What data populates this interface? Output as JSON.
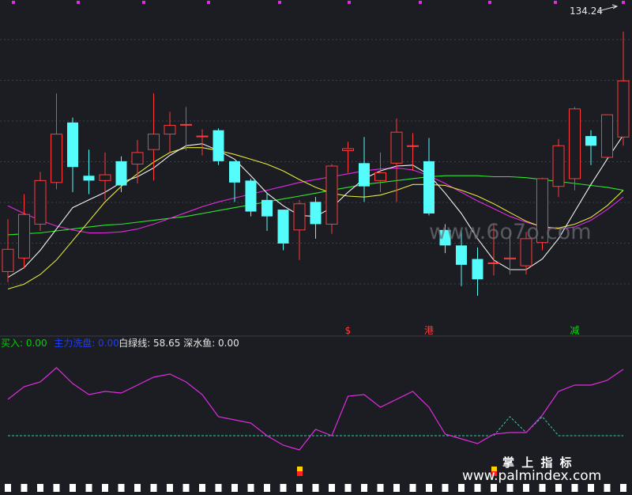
{
  "chart_data": {
    "type": "candlestick",
    "price_label": "134.24",
    "candles": [
      {
        "open": 117.6,
        "close": 119.9,
        "high": 123.0,
        "low": 116.5
      },
      {
        "open": 119.0,
        "close": 123.5,
        "high": 125.6,
        "low": 117.9
      },
      {
        "open": 122.5,
        "close": 127.0,
        "high": 127.9,
        "low": 121.8
      },
      {
        "open": 126.8,
        "close": 131.8,
        "high": 136.0,
        "low": 126.1
      },
      {
        "open": 133.0,
        "close": 128.4,
        "high": 133.5,
        "low": 125.8
      },
      {
        "open": 127.5,
        "close": 127.0,
        "high": 130.2,
        "low": 125.6
      },
      {
        "open": 127.0,
        "close": 127.6,
        "high": 129.9,
        "low": 125.0
      },
      {
        "open": 129.0,
        "close": 126.5,
        "high": 129.5,
        "low": 125.8
      },
      {
        "open": 128.7,
        "close": 129.9,
        "high": 131.2,
        "low": 126.7
      },
      {
        "open": 130.2,
        "close": 131.8,
        "high": 136.0,
        "low": 127.0
      },
      {
        "open": 131.8,
        "close": 132.7,
        "high": 134.1,
        "low": 129.9
      },
      {
        "open": 132.8,
        "close": 132.8,
        "high": 134.6,
        "low": 130.1
      },
      {
        "open": 131.6,
        "close": 131.6,
        "high": 132.3,
        "low": 129.6
      },
      {
        "open": 132.2,
        "close": 129.0,
        "high": 132.4,
        "low": 128.6
      },
      {
        "open": 129.0,
        "close": 126.8,
        "high": 129.0,
        "low": 124.8
      },
      {
        "open": 127.0,
        "close": 123.8,
        "high": 127.2,
        "low": 123.3
      },
      {
        "open": 125.0,
        "close": 123.3,
        "high": 125.7,
        "low": 121.8
      },
      {
        "open": 124.0,
        "close": 120.5,
        "high": 124.0,
        "low": 119.8
      },
      {
        "open": 121.9,
        "close": 124.6,
        "high": 125.0,
        "low": 118.8
      },
      {
        "open": 124.8,
        "close": 122.5,
        "high": 125.3,
        "low": 121.0
      },
      {
        "open": 122.5,
        "close": 128.5,
        "high": 128.7,
        "low": 121.5
      },
      {
        "open": 130.1,
        "close": 130.3,
        "high": 131.0,
        "low": 127.8
      },
      {
        "open": 128.8,
        "close": 126.4,
        "high": 131.5,
        "low": 124.8
      },
      {
        "open": 127.0,
        "close": 127.8,
        "high": 129.9,
        "low": 125.8
      },
      {
        "open": 128.8,
        "close": 132.0,
        "high": 133.4,
        "low": 124.8
      },
      {
        "open": 130.6,
        "close": 130.6,
        "high": 131.9,
        "low": 128.0
      },
      {
        "open": 129.0,
        "close": 123.6,
        "high": 131.4,
        "low": 123.4
      },
      {
        "open": 121.9,
        "close": 120.3,
        "high": 122.5,
        "low": 119.5
      },
      {
        "open": 120.3,
        "close": 118.3,
        "high": 121.8,
        "low": 116.1
      },
      {
        "open": 118.9,
        "close": 116.8,
        "high": 120.1,
        "low": 115.1
      },
      {
        "open": 118.5,
        "close": 118.5,
        "high": 122.5,
        "low": 117.2
      },
      {
        "open": 118.9,
        "close": 119.0,
        "high": 121.9,
        "low": 117.3
      },
      {
        "open": 118.2,
        "close": 121.0,
        "high": 121.7,
        "low": 117.3
      },
      {
        "open": 120.6,
        "close": 127.2,
        "high": 127.3,
        "low": 119.8
      },
      {
        "open": 126.4,
        "close": 130.6,
        "high": 131.3,
        "low": 125.3
      },
      {
        "open": 127.2,
        "close": 134.4,
        "high": 134.6,
        "low": 126.0
      },
      {
        "open": 131.6,
        "close": 130.6,
        "high": 132.2,
        "low": 128.6
      },
      {
        "open": 129.4,
        "close": 133.8,
        "high": 133.8,
        "low": 129.4
      },
      {
        "open": 131.5,
        "close": 137.3,
        "high": 142.4,
        "low": 130.6
      }
    ],
    "ma_white": [
      117.0,
      118.0,
      119.8,
      122.0,
      124.2,
      125.0,
      125.8,
      126.8,
      127.4,
      128.3,
      129.6,
      130.6,
      130.8,
      130.1,
      129.2,
      127.5,
      125.7,
      124.4,
      123.4,
      123.3,
      124.2,
      125.8,
      127.2,
      128.0,
      128.5,
      128.6,
      127.6,
      125.7,
      123.6,
      121.0,
      118.8,
      117.8,
      117.8,
      118.9,
      121.0,
      123.8,
      126.6,
      129.2,
      131.7
    ],
    "ma_yellow": [
      115.8,
      116.3,
      117.3,
      118.8,
      120.8,
      122.8,
      124.8,
      126.4,
      127.7,
      128.9,
      129.9,
      130.4,
      130.4,
      130.1,
      129.7,
      129.2,
      128.7,
      128.0,
      127.1,
      126.3,
      125.7,
      125.4,
      125.3,
      125.5,
      126.0,
      126.6,
      126.6,
      126.5,
      126.0,
      125.4,
      124.6,
      123.7,
      122.8,
      122.2,
      122.1,
      122.5,
      123.2,
      124.4,
      126.0
    ],
    "ma_magenta": [
      124.4,
      123.6,
      122.9,
      122.3,
      121.9,
      121.6,
      121.6,
      121.7,
      122.0,
      122.5,
      123.1,
      123.7,
      124.3,
      124.8,
      125.2,
      125.6,
      126.0,
      126.4,
      126.8,
      127.1,
      127.4,
      127.7,
      128.0,
      128.2,
      128.3,
      128.1,
      127.5,
      126.7,
      125.8,
      124.9,
      124.1,
      123.3,
      122.7,
      122.2,
      122.0,
      122.2,
      122.9,
      124.0,
      125.3
    ],
    "ma_green": [
      121.4,
      121.5,
      121.6,
      121.8,
      122.0,
      122.2,
      122.4,
      122.5,
      122.7,
      122.9,
      123.1,
      123.3,
      123.6,
      123.9,
      124.2,
      124.5,
      124.8,
      125.1,
      125.4,
      125.7,
      126.0,
      126.3,
      126.6,
      126.8,
      127.0,
      127.2,
      127.4,
      127.5,
      127.5,
      127.5,
      127.4,
      127.4,
      127.3,
      127.1,
      126.9,
      126.7,
      126.5,
      126.3,
      126.0
    ],
    "y_range": [
      112,
      145
    ],
    "signals": [
      {
        "index": 21,
        "text": "$",
        "color": "#ff3b3b"
      },
      {
        "index": 26,
        "text": "港",
        "color": "#ff3b3b"
      },
      {
        "index": 35,
        "text": "减",
        "color": "#00e000"
      }
    ],
    "indicator": {
      "legend": [
        {
          "label": "买入: 0.00",
          "color": "#00d000"
        },
        {
          "label": "主力洗盘: 0.00",
          "color": "#1e3cff"
        },
        {
          "label": "白绿线: 58.65",
          "color": "#e6e6e6"
        },
        {
          "label": "深水鱼: 0.00",
          "color": "#e6e6e6"
        }
      ],
      "y_range": [
        20,
        85
      ],
      "magenta": [
        55,
        63,
        66,
        75,
        65,
        58,
        60,
        59,
        64,
        69,
        71,
        66,
        58,
        44,
        42,
        40,
        32,
        26,
        23,
        36,
        32,
        57,
        58,
        50,
        55,
        60,
        50,
        33,
        30,
        27,
        33,
        34,
        34,
        45,
        60,
        64,
        64,
        67,
        74
      ],
      "green": [
        32,
        32,
        32,
        32,
        32,
        32,
        32,
        32,
        32,
        32,
        32,
        32,
        32,
        32,
        32,
        32,
        32,
        32,
        32,
        32,
        32,
        32,
        32,
        32,
        32,
        32,
        32,
        32,
        32,
        32,
        32,
        44,
        34,
        44,
        32,
        32,
        32,
        32,
        32
      ],
      "markers": [
        18,
        30
      ]
    },
    "watermark": "www.6o7o.com",
    "footer_title": "掌 上 指 标",
    "footer_url": "www.palmindex.com"
  }
}
